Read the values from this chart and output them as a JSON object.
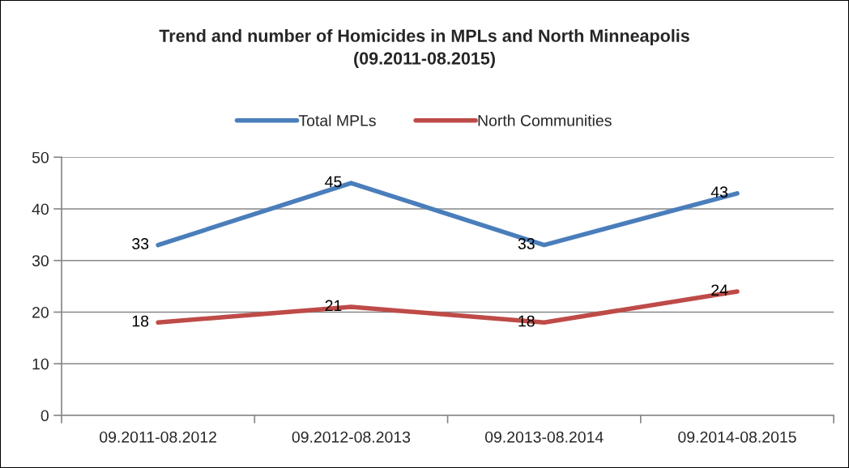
{
  "chart_data": {
    "type": "line",
    "title": "Trend and number of Homicides in MPLs and North Minneapolis\n(09.2011-08.2015)",
    "categories": [
      "09.2011-08.2012",
      "09.2012-08.2013",
      "09.2013-08.2014",
      "09.2014-08.2015"
    ],
    "series": [
      {
        "name": "Total MPLs",
        "color": "#4a7ebb",
        "values": [
          33,
          45,
          33,
          43
        ]
      },
      {
        "name": "North Communities",
        "color": "#be4b48",
        "values": [
          18,
          21,
          18,
          24
        ]
      }
    ],
    "ylim": [
      0,
      50
    ],
    "yticks": [
      0,
      10,
      20,
      30,
      40,
      50
    ],
    "grid": "y",
    "legend": "top",
    "data_labels": true
  }
}
